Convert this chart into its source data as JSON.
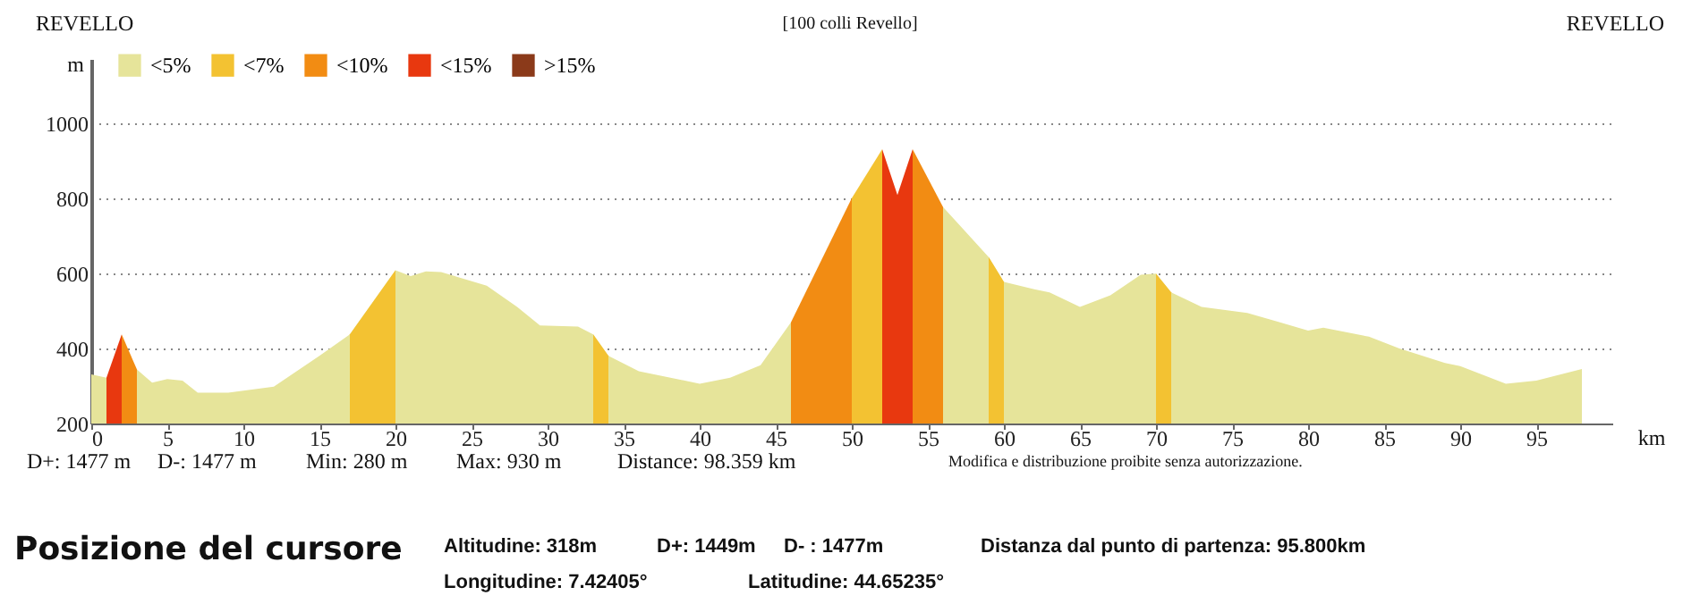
{
  "chart_data": {
    "type": "area",
    "title": "[100 colli Revello]",
    "xlabel": "km",
    "ylabel": "m",
    "annotations": [
      "REVELLO",
      "REVELLO",
      "D+: 1477 m",
      "D-: 1477 m",
      "Min: 280 m",
      "Max: 930 m",
      "Distance: 98.359 km",
      "Modifica e distribuzione proibite senza autorizzazione.",
      "Posizione del cursore",
      "Altitudine: 318m",
      "D+: 1449m",
      "D- : 1477m",
      "Distanza dal punto di partenza: 95.800km",
      "Longitudine: 7.42405°",
      "Latitudine: 44.65235°"
    ],
    "x": [
      0,
      1,
      2,
      3,
      4,
      5,
      6,
      7,
      9,
      12,
      15,
      17,
      20,
      21,
      22,
      23,
      26,
      28,
      29.5,
      32,
      33,
      34,
      36,
      40,
      42,
      44,
      46,
      50,
      52,
      53,
      54,
      56,
      59,
      60,
      62,
      63,
      65,
      67,
      69,
      70,
      71,
      73,
      76,
      78,
      80,
      81,
      84,
      86,
      89,
      90,
      93,
      95,
      98
    ],
    "series": [
      {
        "name": "<5%",
        "color": "#e6e49a",
        "values": [
          331,
          322,
          null,
          344,
          309,
          318,
          314,
          282,
          282,
          298,
          380,
          437,
          608,
          592,
          605,
          603,
          567,
          510,
          461,
          458,
          437,
          380,
          339,
          306,
          322,
          355,
          469,
          null,
          null,
          null,
          null,
          776,
          643,
          577,
          557,
          549,
          510,
          541,
          596,
          599,
          549,
          510,
          494,
          471,
          447,
          455,
          431,
          400,
          361,
          353,
          306,
          314,
          345
        ]
      },
      {
        "name": "<7%",
        "color": "#f3c232",
        "values": [
          null,
          null,
          null,
          null,
          null,
          null,
          null,
          null,
          null,
          null,
          null,
          437,
          608,
          null,
          null,
          null,
          null,
          null,
          null,
          null,
          437,
          380,
          null,
          null,
          null,
          null,
          null,
          800,
          930,
          null,
          null,
          null,
          643,
          577,
          null,
          null,
          null,
          null,
          null,
          599,
          549,
          null,
          null,
          null,
          null,
          null,
          null,
          null,
          null,
          null,
          null,
          null,
          null
        ]
      },
      {
        "name": "<10%",
        "color": "#f28c13",
        "values": [
          null,
          null,
          437,
          344,
          null,
          null,
          null,
          null,
          null,
          null,
          null,
          null,
          null,
          null,
          null,
          null,
          null,
          null,
          null,
          null,
          null,
          null,
          null,
          null,
          null,
          null,
          469,
          800,
          null,
          null,
          930,
          776,
          null,
          null,
          null,
          null,
          null,
          null,
          null,
          null,
          null,
          null,
          null,
          null,
          null,
          null,
          null,
          null,
          null,
          null,
          null,
          null,
          null
        ]
      },
      {
        "name": "<15%",
        "color": "#e8380f",
        "values": [
          null,
          322,
          437,
          null,
          null,
          null,
          null,
          null,
          null,
          null,
          null,
          null,
          null,
          null,
          null,
          null,
          null,
          null,
          null,
          null,
          null,
          null,
          null,
          null,
          null,
          null,
          null,
          null,
          930,
          808,
          930,
          null,
          null,
          null,
          null,
          null,
          null,
          null,
          null,
          null,
          null,
          null,
          null,
          null,
          null,
          null,
          null,
          null,
          null,
          null,
          null,
          null,
          null
        ]
      },
      {
        "name": ">15%",
        "color": "#8b3a1a",
        "values": [
          null,
          null,
          null,
          null,
          null,
          null,
          null,
          null,
          null,
          null,
          null,
          null,
          null,
          null,
          null,
          null,
          null,
          null,
          null,
          null,
          null,
          null,
          null,
          null,
          null,
          null,
          null,
          null,
          null,
          null,
          null,
          null,
          null,
          null,
          null,
          null,
          null,
          null,
          null,
          null,
          null,
          null,
          null,
          null,
          null,
          null,
          null,
          null,
          null,
          null,
          null,
          null,
          null
        ]
      }
    ],
    "xlim": [
      0,
      100
    ],
    "ylim": [
      200,
      1170
    ],
    "xticks": [
      0,
      5,
      10,
      15,
      20,
      25,
      30,
      35,
      40,
      45,
      50,
      55,
      60,
      65,
      70,
      75,
      80,
      85,
      90,
      95
    ],
    "yticks": [
      200,
      400,
      600,
      800,
      1000
    ],
    "grid": "y",
    "legend": "top left"
  }
}
